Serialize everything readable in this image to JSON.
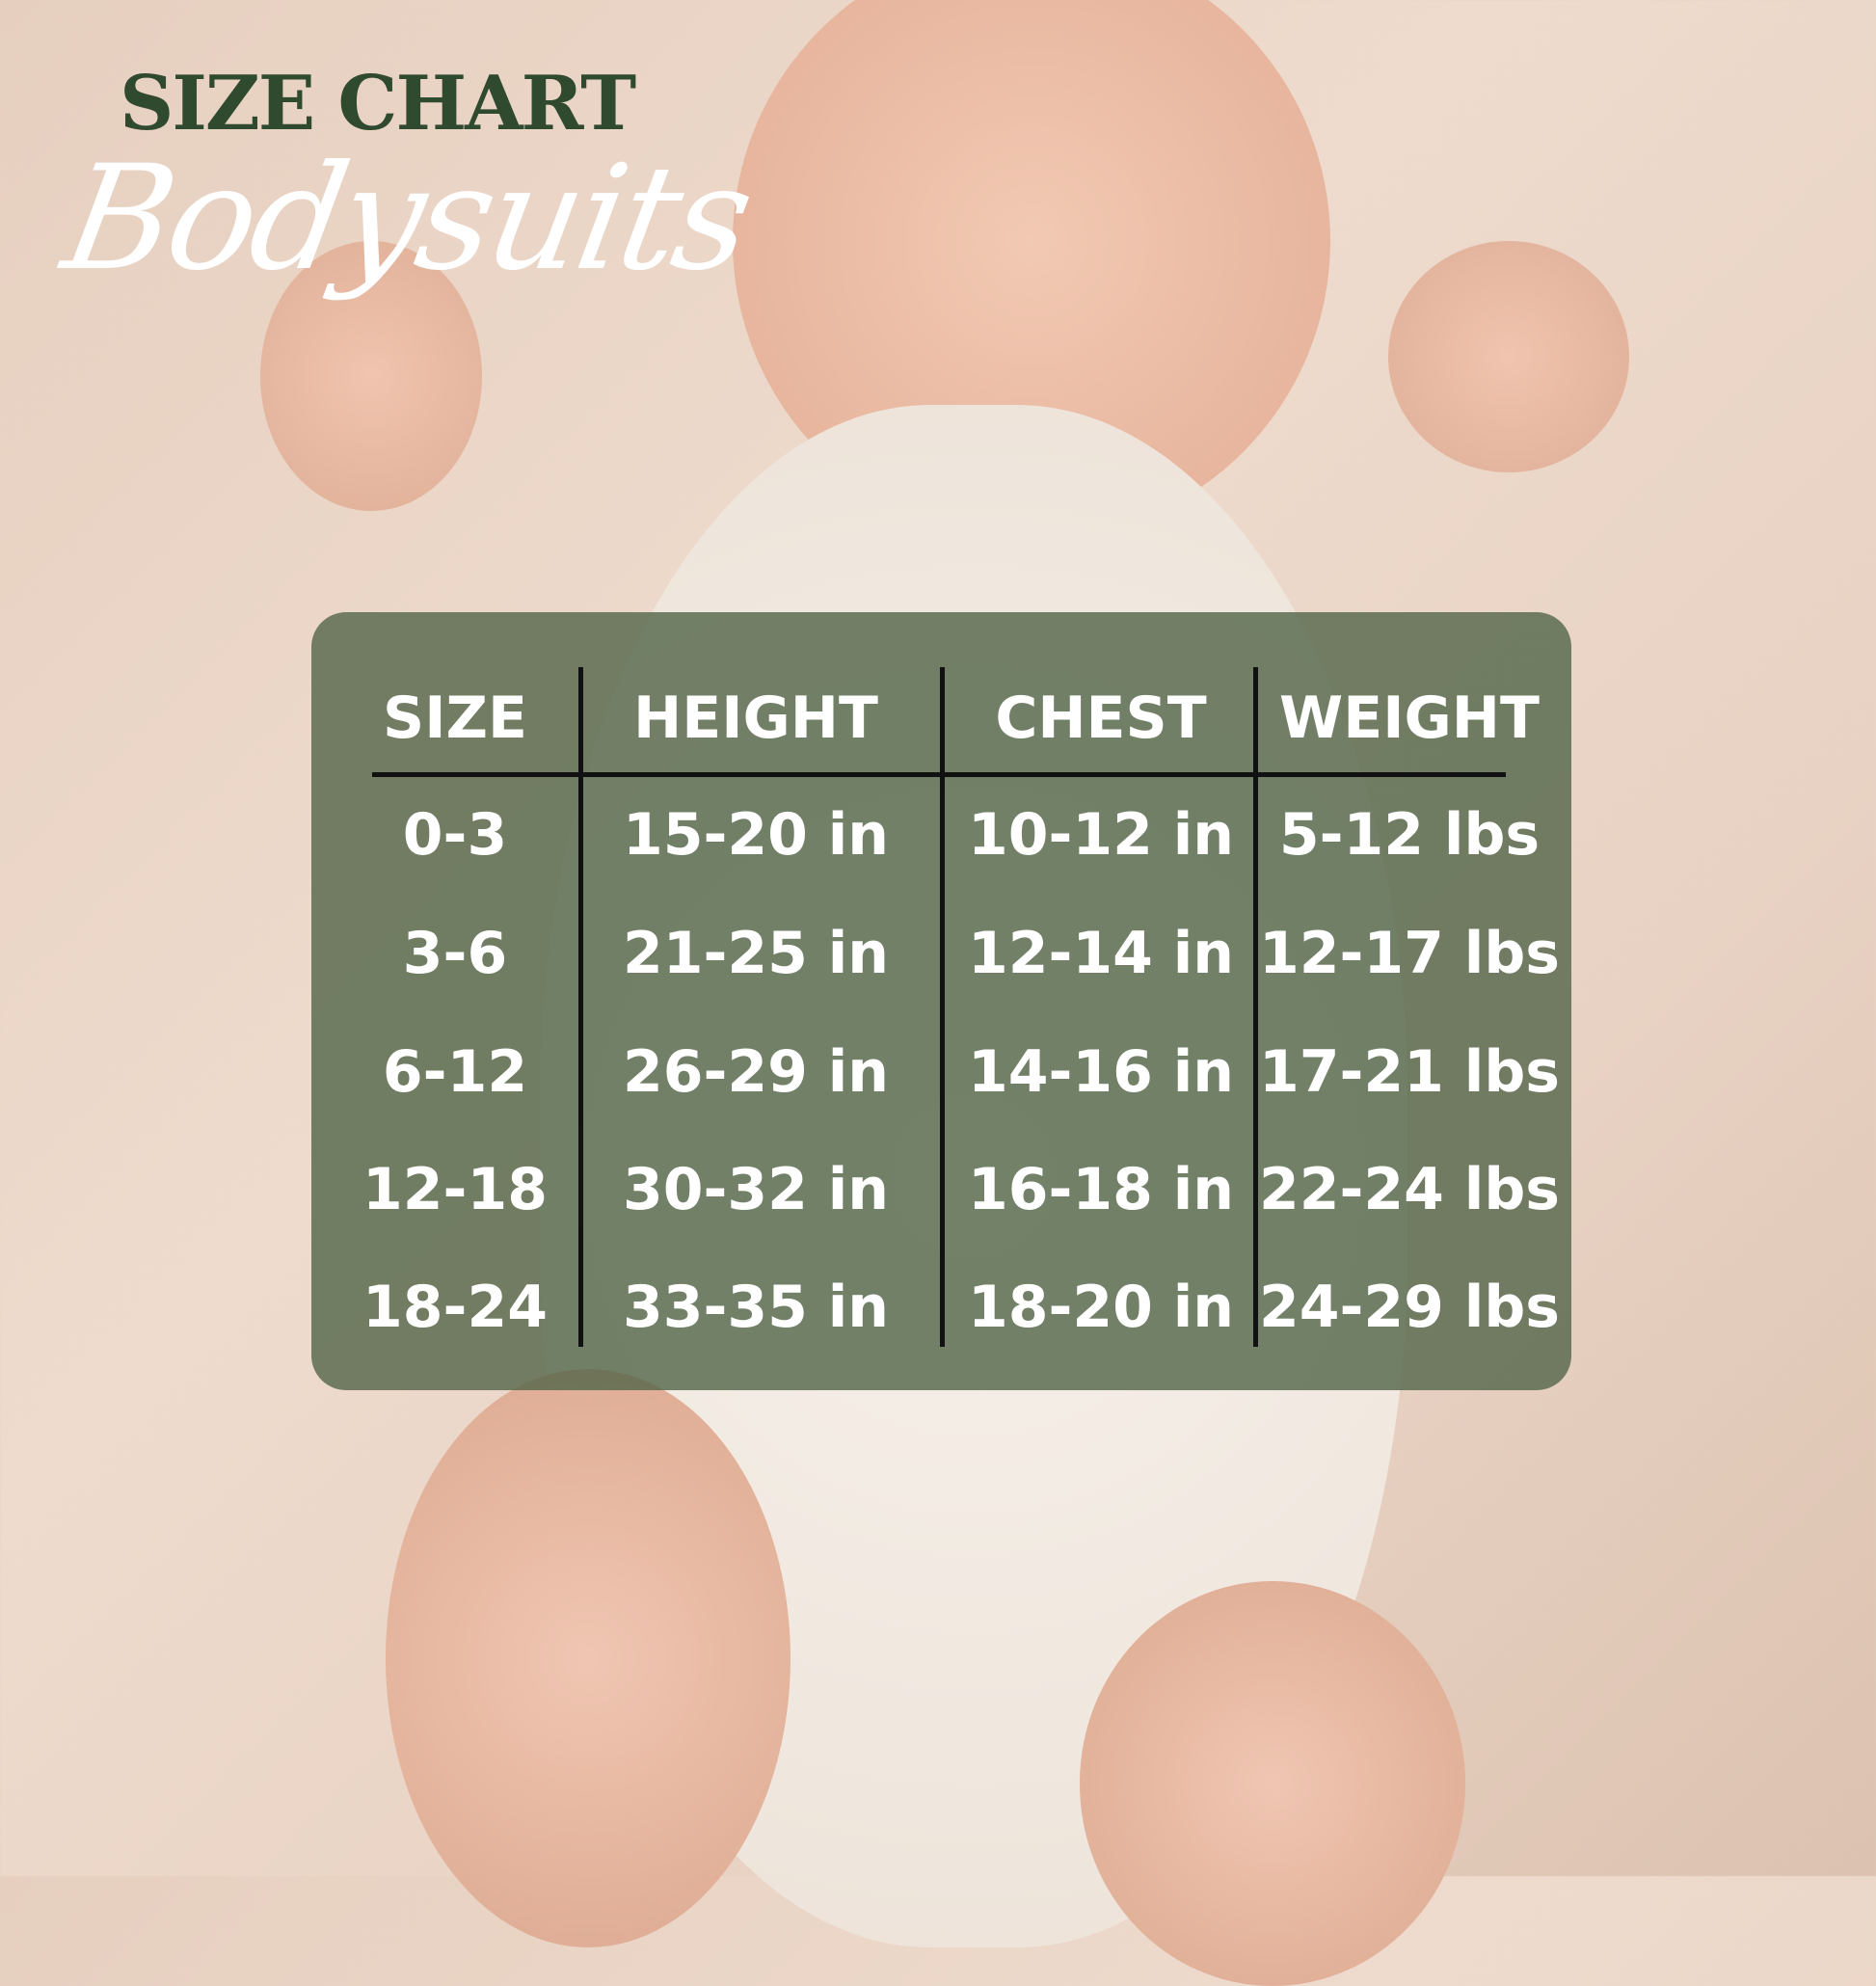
{
  "header": {
    "title": "SIZE CHART",
    "subtitle": "Bodysuits"
  },
  "table": {
    "columns": [
      "SIZE",
      "HEIGHT",
      "CHEST",
      "WEIGHT"
    ],
    "rows": [
      [
        "0-3",
        "15-20 in",
        "10-12 in",
        "5-12 lbs"
      ],
      [
        "3-6",
        "21-25 in",
        "12-14 in",
        "12-17 lbs"
      ],
      [
        "6-12",
        "26-29 in",
        "14-16 in",
        "17-21 lbs"
      ],
      [
        "12-18",
        "30-32 in",
        "16-18 in",
        "22-24 lbs"
      ],
      [
        "18-24",
        "33-35 in",
        "18-20 in",
        "24-29 lbs"
      ]
    ]
  },
  "colors": {
    "title": "#2f4a2f",
    "panel": "#56684c",
    "text": "#ffffff"
  }
}
